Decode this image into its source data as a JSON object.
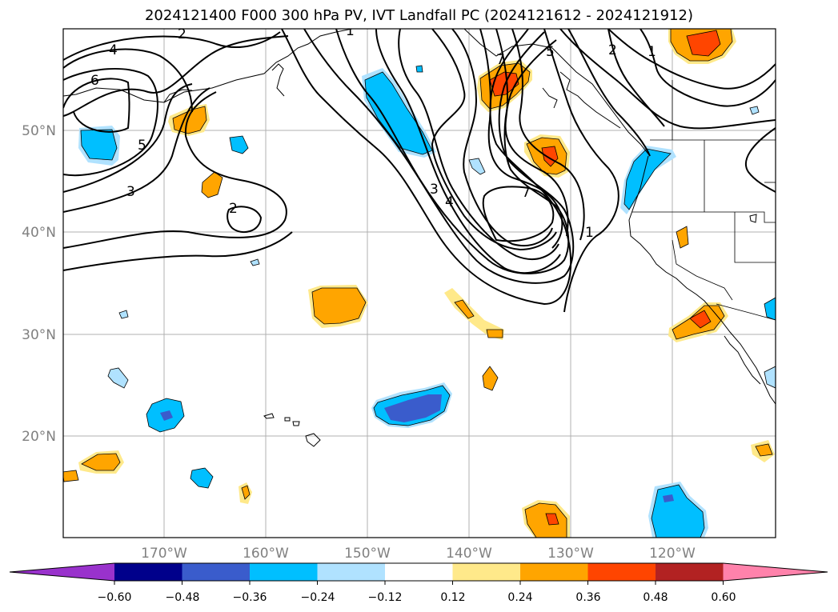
{
  "title": "2024121400 F000 300 hPa PV, IVT Landfall PC (2024121612 - 2024121912)",
  "map": {
    "lon_range": [
      -180,
      -110
    ],
    "lat_range": [
      10,
      60
    ],
    "lat_labels": [
      "20°N",
      "30°N",
      "40°N",
      "50°N"
    ],
    "lon_labels": [
      "170°W",
      "160°W",
      "150°W",
      "140°W",
      "130°W",
      "120°W"
    ],
    "grid": true
  },
  "contour_labels": [
    "2",
    "4",
    "6",
    "5",
    "3",
    "2",
    "3",
    "4",
    "7",
    "1",
    "1",
    "2",
    "7",
    "5",
    "1"
  ],
  "colorbar": {
    "colors": [
      "#9932cc",
      "#00008b",
      "#3a5ccc",
      "#00bfff",
      "#b0e2ff",
      "#ffffff",
      "#ffe98a",
      "#ffa500",
      "#ff4500",
      "#b22222",
      "#ff82ab"
    ],
    "tick_labels": [
      "−0.60",
      "−0.48",
      "−0.36",
      "−0.24",
      "−0.12",
      "0.12",
      "0.24",
      "0.36",
      "0.48",
      "0.60"
    ],
    "extend": "both"
  }
}
